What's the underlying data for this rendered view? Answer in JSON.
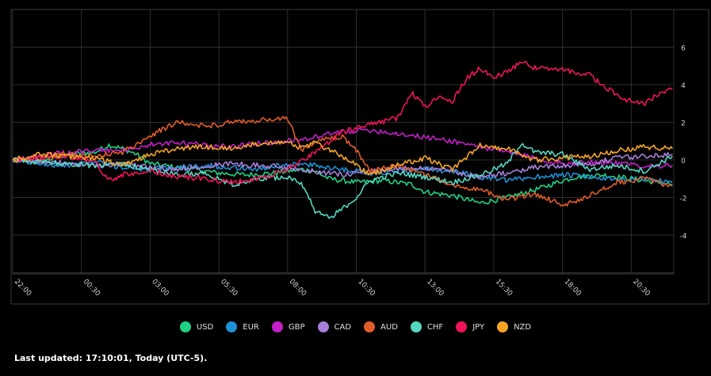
{
  "chart_data": {
    "type": "line",
    "x_ticks": [
      "22:00",
      "00:30",
      "03:00",
      "05:30",
      "08:00",
      "10:30",
      "13:00",
      "15:30",
      "18:00",
      "20:30"
    ],
    "y_ticks": [
      "6",
      "4",
      "2",
      "0",
      "-2",
      "-4"
    ],
    "ylim": [
      -6,
      8
    ],
    "grid": true,
    "legend_position": "bottom-center",
    "series": [
      {
        "name": "USD",
        "color": "#1fd084",
        "points": [
          [
            0,
            0
          ],
          [
            2,
            -0.1
          ],
          [
            4,
            0.3
          ],
          [
            6,
            0.4
          ],
          [
            7,
            0.8
          ],
          [
            8,
            0.6
          ],
          [
            9,
            0.3
          ],
          [
            10,
            -0.2
          ],
          [
            12,
            -0.4
          ],
          [
            13,
            -0.5
          ],
          [
            15,
            -0.7
          ],
          [
            17,
            -0.8
          ],
          [
            19,
            -0.7
          ],
          [
            21,
            -0.5
          ],
          [
            22,
            -0.6
          ],
          [
            23,
            -1.0
          ],
          [
            25,
            -1.2
          ],
          [
            27,
            -1.1
          ],
          [
            29,
            -1.3
          ],
          [
            30,
            -1.7
          ],
          [
            32,
            -1.9
          ],
          [
            33,
            -2.1
          ],
          [
            34,
            -2.3
          ],
          [
            36,
            -2.0
          ],
          [
            38,
            -1.6
          ],
          [
            40,
            -1.1
          ],
          [
            41,
            -0.9
          ],
          [
            43,
            -0.8
          ],
          [
            45,
            -1.0
          ],
          [
            46,
            -1.1
          ],
          [
            47,
            -1.2
          ],
          [
            48,
            -1.3
          ]
        ]
      },
      {
        "name": "EUR",
        "color": "#1e90d6",
        "points": [
          [
            0,
            0
          ],
          [
            2,
            -0.2
          ],
          [
            4,
            -0.3
          ],
          [
            6,
            -0.1
          ],
          [
            8,
            -0.4
          ],
          [
            10,
            -0.5
          ],
          [
            12,
            -0.4
          ],
          [
            14,
            -0.3
          ],
          [
            16,
            -0.4
          ],
          [
            18,
            -0.5
          ],
          [
            20,
            -0.2
          ],
          [
            22,
            -0.3
          ],
          [
            24,
            -0.5
          ],
          [
            26,
            -0.7
          ],
          [
            28,
            -0.6
          ],
          [
            30,
            -0.5
          ],
          [
            32,
            -0.6
          ],
          [
            34,
            -0.9
          ],
          [
            36,
            -1.1
          ],
          [
            38,
            -0.9
          ],
          [
            40,
            -0.8
          ],
          [
            42,
            -0.9
          ],
          [
            44,
            -1.1
          ],
          [
            46,
            -1.0
          ],
          [
            48,
            -1.2
          ]
        ]
      },
      {
        "name": "GBP",
        "color": "#c21fc7",
        "points": [
          [
            0,
            0
          ],
          [
            2,
            0.2
          ],
          [
            4,
            0.4
          ],
          [
            6,
            0.5
          ],
          [
            8,
            0.5
          ],
          [
            10,
            0.8
          ],
          [
            12,
            0.9
          ],
          [
            14,
            0.8
          ],
          [
            16,
            0.7
          ],
          [
            18,
            0.9
          ],
          [
            20,
            1.0
          ],
          [
            22,
            1.2
          ],
          [
            24,
            1.5
          ],
          [
            26,
            1.6
          ],
          [
            28,
            1.4
          ],
          [
            30,
            1.2
          ],
          [
            32,
            1.0
          ],
          [
            34,
            0.7
          ],
          [
            36,
            0.4
          ],
          [
            38,
            0.1
          ],
          [
            40,
            -0.2
          ],
          [
            42,
            -0.1
          ],
          [
            44,
            -0.2
          ],
          [
            46,
            -0.3
          ],
          [
            48,
            -0.3
          ]
        ]
      },
      {
        "name": "CAD",
        "color": "#a77fda",
        "points": [
          [
            0,
            0
          ],
          [
            2,
            -0.1
          ],
          [
            4,
            -0.2
          ],
          [
            6,
            -0.3
          ],
          [
            8,
            -0.2
          ],
          [
            10,
            -0.4
          ],
          [
            12,
            -0.5
          ],
          [
            14,
            -0.3
          ],
          [
            16,
            -0.2
          ],
          [
            18,
            -0.3
          ],
          [
            20,
            -0.4
          ],
          [
            22,
            -0.6
          ],
          [
            24,
            -0.8
          ],
          [
            26,
            -0.6
          ],
          [
            28,
            -0.5
          ],
          [
            30,
            -0.4
          ],
          [
            32,
            -0.6
          ],
          [
            34,
            -0.9
          ],
          [
            36,
            -0.7
          ],
          [
            38,
            -0.4
          ],
          [
            40,
            -0.3
          ],
          [
            42,
            -0.2
          ],
          [
            44,
            0.1
          ],
          [
            46,
            0.2
          ],
          [
            48,
            0.3
          ]
        ]
      },
      {
        "name": "AUD",
        "color": "#e25c2a",
        "points": [
          [
            0,
            0
          ],
          [
            2,
            0.1
          ],
          [
            4,
            0.3
          ],
          [
            6,
            0.2
          ],
          [
            8,
            0.4
          ],
          [
            10,
            1.3
          ],
          [
            12,
            2.0
          ],
          [
            14,
            1.8
          ],
          [
            16,
            2.0
          ],
          [
            18,
            2.1
          ],
          [
            20,
            2.2
          ],
          [
            21,
            0.5
          ],
          [
            22,
            1.0
          ],
          [
            24,
            1.2
          ],
          [
            25,
            0.5
          ],
          [
            26,
            -0.6
          ],
          [
            28,
            -0.3
          ],
          [
            30,
            -0.8
          ],
          [
            32,
            -1.3
          ],
          [
            34,
            -1.6
          ],
          [
            36,
            -2.1
          ],
          [
            38,
            -1.8
          ],
          [
            40,
            -2.4
          ],
          [
            42,
            -1.9
          ],
          [
            44,
            -1.2
          ],
          [
            46,
            -1.0
          ],
          [
            48,
            -1.4
          ]
        ]
      },
      {
        "name": "CHF",
        "color": "#55d8c1",
        "points": [
          [
            0,
            0
          ],
          [
            2,
            -0.1
          ],
          [
            4,
            -0.2
          ],
          [
            6,
            -0.3
          ],
          [
            8,
            -0.2
          ],
          [
            10,
            -0.5
          ],
          [
            12,
            -0.8
          ],
          [
            14,
            -0.7
          ],
          [
            16,
            -1.3
          ],
          [
            18,
            -1.0
          ],
          [
            20,
            -0.9
          ],
          [
            21,
            -1.2
          ],
          [
            22,
            -2.7
          ],
          [
            23,
            -3.1
          ],
          [
            24,
            -2.6
          ],
          [
            25,
            -2.0
          ],
          [
            26,
            -1.1
          ],
          [
            28,
            -0.7
          ],
          [
            30,
            -0.9
          ],
          [
            32,
            -1.2
          ],
          [
            34,
            -0.8
          ],
          [
            36,
            -0.2
          ],
          [
            37,
            0.9
          ],
          [
            38,
            0.4
          ],
          [
            40,
            0.3
          ],
          [
            42,
            -0.5
          ],
          [
            44,
            -0.3
          ],
          [
            46,
            -0.6
          ],
          [
            48,
            0.2
          ]
        ]
      },
      {
        "name": "JPY",
        "color": "#ef1458",
        "points": [
          [
            0,
            0
          ],
          [
            2,
            0.1
          ],
          [
            4,
            0.2
          ],
          [
            6,
            -0.1
          ],
          [
            7,
            -1.1
          ],
          [
            8,
            -0.8
          ],
          [
            10,
            -0.6
          ],
          [
            12,
            -0.9
          ],
          [
            14,
            -1.0
          ],
          [
            16,
            -1.2
          ],
          [
            18,
            -1.0
          ],
          [
            20,
            -0.5
          ],
          [
            22,
            0.4
          ],
          [
            24,
            1.5
          ],
          [
            26,
            1.9
          ],
          [
            28,
            2.2
          ],
          [
            29,
            3.6
          ],
          [
            30,
            2.8
          ],
          [
            31,
            3.3
          ],
          [
            32,
            3.1
          ],
          [
            33,
            4.3
          ],
          [
            34,
            4.9
          ],
          [
            35,
            4.4
          ],
          [
            36,
            4.7
          ],
          [
            37,
            5.2
          ],
          [
            38,
            4.9
          ],
          [
            40,
            4.8
          ],
          [
            42,
            4.5
          ],
          [
            44,
            3.4
          ],
          [
            45,
            3.1
          ],
          [
            46,
            3.0
          ],
          [
            47,
            3.5
          ],
          [
            48,
            3.8
          ]
        ]
      },
      {
        "name": "NZD",
        "color": "#f5a524",
        "points": [
          [
            0,
            0
          ],
          [
            2,
            0.3
          ],
          [
            4,
            0.2
          ],
          [
            6,
            0.1
          ],
          [
            8,
            -0.3
          ],
          [
            10,
            0.3
          ],
          [
            12,
            0.6
          ],
          [
            14,
            0.7
          ],
          [
            16,
            0.6
          ],
          [
            18,
            0.9
          ],
          [
            20,
            1.0
          ],
          [
            21,
            0.6
          ],
          [
            22,
            0.9
          ],
          [
            24,
            0.2
          ],
          [
            26,
            -0.8
          ],
          [
            28,
            -0.3
          ],
          [
            30,
            0.1
          ],
          [
            32,
            -0.5
          ],
          [
            34,
            0.8
          ],
          [
            36,
            0.6
          ],
          [
            38,
            0.0
          ],
          [
            40,
            0.1
          ],
          [
            42,
            0.2
          ],
          [
            44,
            0.5
          ],
          [
            46,
            0.7
          ],
          [
            48,
            0.6
          ]
        ]
      }
    ]
  },
  "legend": {
    "items": [
      {
        "label": "USD"
      },
      {
        "label": "EUR"
      },
      {
        "label": "GBP"
      },
      {
        "label": "CAD"
      },
      {
        "label": "AUD"
      },
      {
        "label": "CHF"
      },
      {
        "label": "JPY"
      },
      {
        "label": "NZD"
      }
    ]
  },
  "footer": {
    "updated_text": "Last updated: 17:10:01, Today (UTC-5)."
  }
}
